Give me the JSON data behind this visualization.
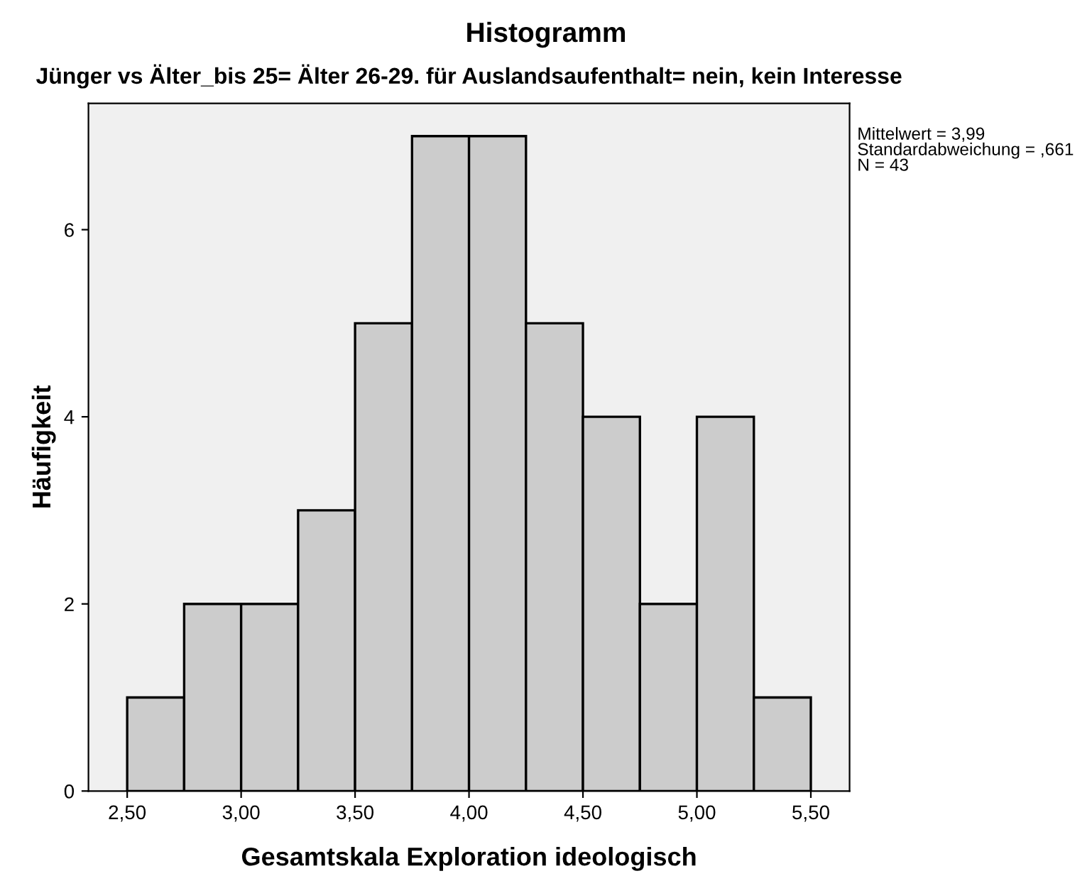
{
  "chart_data": {
    "type": "histogram",
    "title": "Histogramm",
    "subtitle": "Jünger vs Älter_bis 25= Älter 26-29. für Auslandsaufenthalt= nein, kein Interesse",
    "xlabel": "Gesamtskala Exploration ideologisch",
    "ylabel": "Häufigkeit",
    "bins": [
      2.5,
      2.75,
      3.0,
      3.25,
      3.5,
      3.75,
      4.0,
      4.25,
      4.5,
      4.75,
      5.0,
      5.25,
      5.5
    ],
    "values": [
      1,
      2,
      2,
      3,
      5,
      7,
      7,
      5,
      4,
      2,
      4,
      1
    ],
    "color": "#cccccc",
    "xlim": [
      2.33,
      5.67
    ],
    "xticks": [
      {
        "value": 2.5,
        "label": "2,50"
      },
      {
        "value": 3.0,
        "label": "3,00"
      },
      {
        "value": 3.5,
        "label": "3,50"
      },
      {
        "value": 4.0,
        "label": "4,00"
      },
      {
        "value": 4.5,
        "label": "4,50"
      },
      {
        "value": 5.0,
        "label": "5,00"
      },
      {
        "value": 5.5,
        "label": "5,50"
      }
    ],
    "ylim": [
      0,
      7.35
    ],
    "yticks": [
      0,
      2,
      4,
      6
    ],
    "annotations": [
      "Mittelwert = 3,99\nStandardabweichung = ,661\nN = 43"
    ],
    "grid": false,
    "legend": false
  }
}
